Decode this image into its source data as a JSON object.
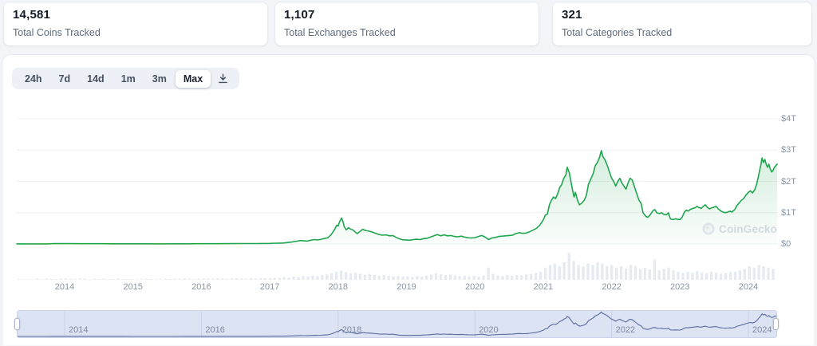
{
  "stats": [
    {
      "value": "14,581",
      "label": "Total Coins Tracked"
    },
    {
      "value": "1,107",
      "label": "Total Exchanges Tracked"
    },
    {
      "value": "321",
      "label": "Total Categories Tracked"
    }
  ],
  "toolbar": {
    "ranges": [
      "24h",
      "7d",
      "14d",
      "1m",
      "3m",
      "Max"
    ],
    "active_range": "Max"
  },
  "watermark": {
    "text": "CoinGecko"
  },
  "colors": {
    "accent_green": "#1fa54e",
    "area_green": "#22a551",
    "navigator_line": "#5b6b9e",
    "navigator_bg": "#dce3f3",
    "volume_bar": "#e7ebf1",
    "grid": "#edf0f4",
    "axis_text": "#8a94a4"
  },
  "chart_data": {
    "type": "area",
    "title": "Total cryptocurrency market cap, Max range",
    "x_unit": "year",
    "x_range": [
      2013.3,
      2024.45
    ],
    "ylim": [
      0,
      4.3
    ],
    "grid": true,
    "legend": "none",
    "y_axis": {
      "position": "right",
      "ticks": [
        {
          "label": "$4T",
          "value": 4.0
        },
        {
          "label": "$3T",
          "value": 3.0
        },
        {
          "label": "$2T",
          "value": 2.0
        },
        {
          "label": "$1T",
          "value": 1.0
        },
        {
          "label": "$0",
          "value": 0.0
        }
      ]
    },
    "x_axis": {
      "ticks": [
        {
          "label": "2014",
          "value": 2014
        },
        {
          "label": "2015",
          "value": 2015
        },
        {
          "label": "2016",
          "value": 2016
        },
        {
          "label": "2017",
          "value": 2017
        },
        {
          "label": "2018",
          "value": 2018
        },
        {
          "label": "2019",
          "value": 2019
        },
        {
          "label": "2020",
          "value": 2020
        },
        {
          "label": "2021",
          "value": 2021
        },
        {
          "label": "2022",
          "value": 2022
        },
        {
          "label": "2023",
          "value": 2023
        },
        {
          "label": "2024",
          "value": 2024
        }
      ]
    },
    "navigator": {
      "ticks": [
        {
          "label": "2014",
          "value": 2014
        },
        {
          "label": "2016",
          "value": 2016
        },
        {
          "label": "2018",
          "value": 2018
        },
        {
          "label": "2020",
          "value": 2020
        },
        {
          "label": "2022",
          "value": 2022
        },
        {
          "label": "2024",
          "value": 2024
        }
      ]
    },
    "series": [
      {
        "name": "market_cap_trillions_usd",
        "points": [
          [
            2013.3,
            0.002
          ],
          [
            2013.45,
            0.002
          ],
          [
            2013.6,
            0.002
          ],
          [
            2013.75,
            0.003
          ],
          [
            2013.85,
            0.013
          ],
          [
            2013.95,
            0.011
          ],
          [
            2014.0,
            0.012
          ],
          [
            2014.1,
            0.01
          ],
          [
            2014.25,
            0.008
          ],
          [
            2014.4,
            0.008
          ],
          [
            2014.55,
            0.007
          ],
          [
            2014.7,
            0.006
          ],
          [
            2014.85,
            0.005
          ],
          [
            2015.0,
            0.004
          ],
          [
            2015.2,
            0.004
          ],
          [
            2015.4,
            0.003
          ],
          [
            2015.6,
            0.004
          ],
          [
            2015.8,
            0.005
          ],
          [
            2016.0,
            0.007
          ],
          [
            2016.2,
            0.008
          ],
          [
            2016.4,
            0.009
          ],
          [
            2016.6,
            0.012
          ],
          [
            2016.8,
            0.013
          ],
          [
            2017.0,
            0.018
          ],
          [
            2017.1,
            0.025
          ],
          [
            2017.2,
            0.03
          ],
          [
            2017.3,
            0.055
          ],
          [
            2017.4,
            0.09
          ],
          [
            2017.45,
            0.11
          ],
          [
            2017.5,
            0.1
          ],
          [
            2017.55,
            0.092
          ],
          [
            2017.6,
            0.12
          ],
          [
            2017.65,
            0.14
          ],
          [
            2017.7,
            0.128
          ],
          [
            2017.75,
            0.15
          ],
          [
            2017.8,
            0.172
          ],
          [
            2017.85,
            0.2
          ],
          [
            2017.9,
            0.3
          ],
          [
            2017.95,
            0.47
          ],
          [
            2017.98,
            0.6
          ],
          [
            2018.0,
            0.57
          ],
          [
            2018.02,
            0.7
          ],
          [
            2018.05,
            0.83
          ],
          [
            2018.07,
            0.72
          ],
          [
            2018.09,
            0.55
          ],
          [
            2018.12,
            0.45
          ],
          [
            2018.15,
            0.52
          ],
          [
            2018.18,
            0.48
          ],
          [
            2018.22,
            0.44
          ],
          [
            2018.25,
            0.38
          ],
          [
            2018.28,
            0.33
          ],
          [
            2018.32,
            0.4
          ],
          [
            2018.36,
            0.47
          ],
          [
            2018.4,
            0.43
          ],
          [
            2018.45,
            0.41
          ],
          [
            2018.5,
            0.38
          ],
          [
            2018.55,
            0.34
          ],
          [
            2018.6,
            0.3
          ],
          [
            2018.65,
            0.28
          ],
          [
            2018.7,
            0.29
          ],
          [
            2018.75,
            0.26
          ],
          [
            2018.8,
            0.27
          ],
          [
            2018.85,
            0.21
          ],
          [
            2018.9,
            0.16
          ],
          [
            2018.95,
            0.13
          ],
          [
            2019.0,
            0.13
          ],
          [
            2019.05,
            0.12
          ],
          [
            2019.1,
            0.14
          ],
          [
            2019.15,
            0.15
          ],
          [
            2019.2,
            0.14
          ],
          [
            2019.25,
            0.17
          ],
          [
            2019.3,
            0.18
          ],
          [
            2019.35,
            0.22
          ],
          [
            2019.4,
            0.26
          ],
          [
            2019.45,
            0.3
          ],
          [
            2019.5,
            0.26
          ],
          [
            2019.55,
            0.29
          ],
          [
            2019.6,
            0.26
          ],
          [
            2019.65,
            0.27
          ],
          [
            2019.7,
            0.24
          ],
          [
            2019.75,
            0.23
          ],
          [
            2019.8,
            0.25
          ],
          [
            2019.85,
            0.22
          ],
          [
            2019.9,
            0.2
          ],
          [
            2019.95,
            0.19
          ],
          [
            2020.0,
            0.2
          ],
          [
            2020.05,
            0.24
          ],
          [
            2020.1,
            0.27
          ],
          [
            2020.15,
            0.22
          ],
          [
            2020.2,
            0.14
          ],
          [
            2020.25,
            0.19
          ],
          [
            2020.3,
            0.21
          ],
          [
            2020.35,
            0.24
          ],
          [
            2020.4,
            0.25
          ],
          [
            2020.45,
            0.26
          ],
          [
            2020.5,
            0.27
          ],
          [
            2020.55,
            0.28
          ],
          [
            2020.6,
            0.33
          ],
          [
            2020.65,
            0.36
          ],
          [
            2020.7,
            0.34
          ],
          [
            2020.75,
            0.35
          ],
          [
            2020.8,
            0.39
          ],
          [
            2020.85,
            0.44
          ],
          [
            2020.9,
            0.5
          ],
          [
            2020.95,
            0.6
          ],
          [
            2021.0,
            0.77
          ],
          [
            2021.03,
            0.92
          ],
          [
            2021.06,
            0.95
          ],
          [
            2021.09,
            1.25
          ],
          [
            2021.12,
            1.4
          ],
          [
            2021.15,
            1.5
          ],
          [
            2021.18,
            1.45
          ],
          [
            2021.21,
            1.6
          ],
          [
            2021.24,
            1.8
          ],
          [
            2021.27,
            1.9
          ],
          [
            2021.3,
            2.1
          ],
          [
            2021.33,
            2.2
          ],
          [
            2021.35,
            2.45
          ],
          [
            2021.38,
            2.28
          ],
          [
            2021.4,
            2.05
          ],
          [
            2021.43,
            1.7
          ],
          [
            2021.45,
            1.5
          ],
          [
            2021.47,
            1.65
          ],
          [
            2021.5,
            1.4
          ],
          [
            2021.53,
            1.25
          ],
          [
            2021.56,
            1.3
          ],
          [
            2021.6,
            1.4
          ],
          [
            2021.63,
            1.55
          ],
          [
            2021.66,
            1.9
          ],
          [
            2021.7,
            2.1
          ],
          [
            2021.73,
            2.25
          ],
          [
            2021.76,
            2.5
          ],
          [
            2021.79,
            2.6
          ],
          [
            2021.82,
            2.75
          ],
          [
            2021.85,
            2.98
          ],
          [
            2021.87,
            2.8
          ],
          [
            2021.9,
            2.7
          ],
          [
            2021.93,
            2.55
          ],
          [
            2021.96,
            2.35
          ],
          [
            2022.0,
            2.1
          ],
          [
            2022.03,
            2.0
          ],
          [
            2022.06,
            1.85
          ],
          [
            2022.09,
            2.0
          ],
          [
            2022.12,
            2.1
          ],
          [
            2022.15,
            1.95
          ],
          [
            2022.18,
            1.85
          ],
          [
            2022.21,
            1.75
          ],
          [
            2022.24,
            1.95
          ],
          [
            2022.27,
            2.1
          ],
          [
            2022.3,
            2.05
          ],
          [
            2022.33,
            1.85
          ],
          [
            2022.36,
            1.65
          ],
          [
            2022.4,
            1.4
          ],
          [
            2022.43,
            1.3
          ],
          [
            2022.46,
            1.0
          ],
          [
            2022.5,
            0.88
          ],
          [
            2022.53,
            0.85
          ],
          [
            2022.56,
            0.92
          ],
          [
            2022.6,
            1.05
          ],
          [
            2022.63,
            1.1
          ],
          [
            2022.66,
            1.0
          ],
          [
            2022.7,
            0.97
          ],
          [
            2022.73,
            1.0
          ],
          [
            2022.76,
            0.95
          ],
          [
            2022.8,
            0.93
          ],
          [
            2022.83,
            1.0
          ],
          [
            2022.86,
            0.8
          ],
          [
            2022.9,
            0.78
          ],
          [
            2022.93,
            0.8
          ],
          [
            2022.96,
            0.79
          ],
          [
            2023.0,
            0.78
          ],
          [
            2023.03,
            0.85
          ],
          [
            2023.06,
            1.0
          ],
          [
            2023.09,
            1.08
          ],
          [
            2023.12,
            1.05
          ],
          [
            2023.15,
            1.1
          ],
          [
            2023.18,
            1.13
          ],
          [
            2023.22,
            1.16
          ],
          [
            2023.25,
            1.2
          ],
          [
            2023.28,
            1.16
          ],
          [
            2023.31,
            1.14
          ],
          [
            2023.34,
            1.2
          ],
          [
            2023.37,
            1.25
          ],
          [
            2023.4,
            1.17
          ],
          [
            2023.43,
            1.12
          ],
          [
            2023.46,
            1.15
          ],
          [
            2023.5,
            1.18
          ],
          [
            2023.53,
            1.2
          ],
          [
            2023.56,
            1.12
          ],
          [
            2023.6,
            1.05
          ],
          [
            2023.63,
            1.02
          ],
          [
            2023.66,
            1.0
          ],
          [
            2023.7,
            1.02
          ],
          [
            2023.73,
            1.05
          ],
          [
            2023.76,
            1.02
          ],
          [
            2023.8,
            1.1
          ],
          [
            2023.83,
            1.22
          ],
          [
            2023.86,
            1.3
          ],
          [
            2023.9,
            1.4
          ],
          [
            2023.93,
            1.45
          ],
          [
            2023.96,
            1.55
          ],
          [
            2024.0,
            1.65
          ],
          [
            2024.03,
            1.7
          ],
          [
            2024.06,
            1.63
          ],
          [
            2024.09,
            1.72
          ],
          [
            2024.12,
            1.9
          ],
          [
            2024.15,
            2.2
          ],
          [
            2024.18,
            2.5
          ],
          [
            2024.2,
            2.75
          ],
          [
            2024.22,
            2.6
          ],
          [
            2024.24,
            2.7
          ],
          [
            2024.26,
            2.55
          ],
          [
            2024.28,
            2.45
          ],
          [
            2024.3,
            2.55
          ],
          [
            2024.32,
            2.4
          ],
          [
            2024.34,
            2.3
          ],
          [
            2024.36,
            2.35
          ],
          [
            2024.38,
            2.45
          ],
          [
            2024.4,
            2.5
          ],
          [
            2024.42,
            2.55
          ]
        ]
      }
    ],
    "volume_bars_relative": [
      0.03,
      0.02,
      0.03,
      0.02,
      0.04,
      0.03,
      0.05,
      0.04,
      0.03,
      0.04,
      0.05,
      0.04,
      0.03,
      0.05,
      0.04,
      0.03,
      0.04,
      0.03,
      0.04,
      0.03,
      0.03,
      0.04,
      0.03,
      0.02,
      0.03,
      0.02,
      0.03,
      0.04,
      0.03,
      0.02,
      0.03,
      0.04,
      0.03,
      0.04,
      0.03,
      0.05,
      0.04,
      0.03,
      0.04,
      0.04,
      0.05,
      0.04,
      0.06,
      0.05,
      0.04,
      0.05,
      0.06,
      0.05,
      0.04,
      0.06,
      0.05,
      0.07,
      0.06,
      0.06,
      0.08,
      0.07,
      0.1,
      0.09,
      0.12,
      0.1,
      0.14,
      0.12,
      0.16,
      0.14,
      0.18,
      0.2,
      0.24,
      0.3,
      0.34,
      0.28,
      0.24,
      0.27,
      0.22,
      0.19,
      0.22,
      0.18,
      0.16,
      0.18,
      0.15,
      0.13,
      0.15,
      0.12,
      0.13,
      0.11,
      0.14,
      0.12,
      0.16,
      0.2,
      0.24,
      0.2,
      0.17,
      0.2,
      0.16,
      0.14,
      0.15,
      0.13,
      0.14,
      0.12,
      0.16,
      0.45,
      0.22,
      0.16,
      0.14,
      0.17,
      0.15,
      0.18,
      0.16,
      0.2,
      0.22,
      0.26,
      0.3,
      0.45,
      0.55,
      0.6,
      0.5,
      0.65,
      1.0,
      0.7,
      0.55,
      0.5,
      0.6,
      0.55,
      0.65,
      0.6,
      0.5,
      0.55,
      0.45,
      0.5,
      0.42,
      0.55,
      0.5,
      0.4,
      0.45,
      0.38,
      0.75,
      0.35,
      0.4,
      0.45,
      0.35,
      0.3,
      0.25,
      0.3,
      0.26,
      0.32,
      0.28,
      0.25,
      0.3,
      0.26,
      0.22,
      0.25,
      0.28,
      0.3,
      0.35,
      0.4,
      0.5,
      0.45,
      0.55,
      0.5,
      0.45,
      0.4
    ]
  }
}
